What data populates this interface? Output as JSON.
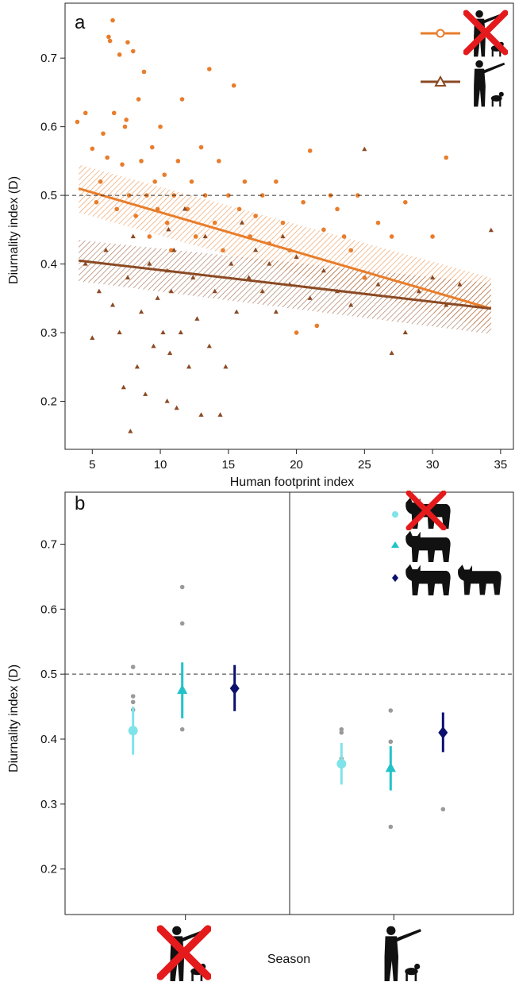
{
  "chart_data": [
    {
      "panel": "a",
      "type": "scatter",
      "xlabel": "Human footprint index",
      "ylabel": "Diurnality index (D)",
      "xlim": [
        3,
        36
      ],
      "ylim": [
        0.13,
        0.78
      ],
      "xticks": [
        "5",
        "10",
        "15",
        "20",
        "25",
        "30",
        "35"
      ],
      "yticks": [
        "0.2",
        "0.3",
        "0.4",
        "0.5",
        "0.6",
        "0.7"
      ],
      "reference_line": 0.5,
      "legend_position": "top-right",
      "colors": {
        "closed": "#E87D2B",
        "open": "#8B4A24"
      },
      "series": [
        {
          "legend_icon": "hunter-with-dog-crossed-icon",
          "marker": "circle",
          "color": "#E87D2B",
          "fit": {
            "x": [
              4,
              34.3
            ],
            "y": [
              0.51,
              0.335
            ]
          },
          "band_lower": [
            0.475,
            0.305
          ],
          "band_upper": [
            0.545,
            0.38
          ],
          "points": [
            [
              3.9,
              0.607
            ],
            [
              4.5,
              0.62
            ],
            [
              5.0,
              0.568
            ],
            [
              5.3,
              0.49
            ],
            [
              5.6,
              0.52
            ],
            [
              5.8,
              0.59
            ],
            [
              6.1,
              0.555
            ],
            [
              6.2,
              0.731
            ],
            [
              6.3,
              0.725
            ],
            [
              6.5,
              0.755
            ],
            [
              6.6,
              0.62
            ],
            [
              6.8,
              0.48
            ],
            [
              7.0,
              0.705
            ],
            [
              7.2,
              0.545
            ],
            [
              7.4,
              0.6
            ],
            [
              7.5,
              0.61
            ],
            [
              7.6,
              0.723
            ],
            [
              7.7,
              0.5
            ],
            [
              8.0,
              0.71
            ],
            [
              8.2,
              0.47
            ],
            [
              8.4,
              0.64
            ],
            [
              8.6,
              0.55
            ],
            [
              8.8,
              0.68
            ],
            [
              9.0,
              0.5
            ],
            [
              9.2,
              0.44
            ],
            [
              9.4,
              0.57
            ],
            [
              9.6,
              0.52
            ],
            [
              9.8,
              0.48
            ],
            [
              10.0,
              0.6
            ],
            [
              10.3,
              0.53
            ],
            [
              10.5,
              0.46
            ],
            [
              10.8,
              0.42
            ],
            [
              11.0,
              0.5
            ],
            [
              11.3,
              0.55
            ],
            [
              11.6,
              0.64
            ],
            [
              12.0,
              0.48
            ],
            [
              12.3,
              0.52
            ],
            [
              12.6,
              0.44
            ],
            [
              13.0,
              0.57
            ],
            [
              13.3,
              0.5
            ],
            [
              13.6,
              0.684
            ],
            [
              14.0,
              0.46
            ],
            [
              14.3,
              0.55
            ],
            [
              14.6,
              0.42
            ],
            [
              15.0,
              0.5
            ],
            [
              15.4,
              0.66
            ],
            [
              15.8,
              0.48
            ],
            [
              16.2,
              0.52
            ],
            [
              16.6,
              0.44
            ],
            [
              17.0,
              0.47
            ],
            [
              17.5,
              0.5
            ],
            [
              18.0,
              0.43
            ],
            [
              18.5,
              0.52
            ],
            [
              19.0,
              0.46
            ],
            [
              19.5,
              0.42
            ],
            [
              20.0,
              0.3
            ],
            [
              20.5,
              0.49
            ],
            [
              21.0,
              0.565
            ],
            [
              21.5,
              0.31
            ],
            [
              22.0,
              0.45
            ],
            [
              22.5,
              0.5
            ],
            [
              23.0,
              0.48
            ],
            [
              23.5,
              0.44
            ],
            [
              24.0,
              0.42
            ],
            [
              24.5,
              0.5
            ],
            [
              25.0,
              0.38
            ],
            [
              26.0,
              0.46
            ],
            [
              27.0,
              0.44
            ],
            [
              28.0,
              0.49
            ],
            [
              30.0,
              0.44
            ],
            [
              31.0,
              0.555
            ]
          ]
        },
        {
          "legend_icon": "hunter-with-dog-icon",
          "marker": "triangle",
          "color": "#8B4A24",
          "fit": {
            "x": [
              4,
              34.3
            ],
            "y": [
              0.405,
              0.335
            ]
          },
          "band_lower": [
            0.375,
            0.298
          ],
          "band_upper": [
            0.435,
            0.372
          ],
          "points": [
            [
              4.5,
              0.4
            ],
            [
              5.0,
              0.292
            ],
            [
              5.5,
              0.36
            ],
            [
              6.0,
              0.42
            ],
            [
              6.5,
              0.34
            ],
            [
              7.0,
              0.3
            ],
            [
              7.3,
              0.22
            ],
            [
              7.6,
              0.38
            ],
            [
              7.8,
              0.156
            ],
            [
              8.0,
              0.44
            ],
            [
              8.3,
              0.25
            ],
            [
              8.6,
              0.33
            ],
            [
              8.9,
              0.21
            ],
            [
              9.2,
              0.4
            ],
            [
              9.5,
              0.28
            ],
            [
              9.8,
              0.35
            ],
            [
              10.2,
              0.3
            ],
            [
              10.5,
              0.39
            ],
            [
              10.5,
              0.2
            ],
            [
              10.6,
              0.45
            ],
            [
              10.7,
              0.27
            ],
            [
              10.8,
              0.36
            ],
            [
              11.0,
              0.42
            ],
            [
              11.2,
              0.19
            ],
            [
              11.5,
              0.3
            ],
            [
              11.8,
              0.48
            ],
            [
              12.1,
              0.25
            ],
            [
              12.4,
              0.38
            ],
            [
              12.7,
              0.32
            ],
            [
              13.0,
              0.18
            ],
            [
              13.3,
              0.44
            ],
            [
              13.6,
              0.28
            ],
            [
              14.0,
              0.36
            ],
            [
              14.4,
              0.18
            ],
            [
              14.8,
              0.25
            ],
            [
              15.2,
              0.4
            ],
            [
              15.6,
              0.33
            ],
            [
              16.0,
              0.46
            ],
            [
              16.5,
              0.38
            ],
            [
              17.0,
              0.42
            ],
            [
              17.5,
              0.36
            ],
            [
              18.0,
              0.4
            ],
            [
              18.5,
              0.33
            ],
            [
              19.0,
              0.44
            ],
            [
              19.5,
              0.37
            ],
            [
              20.0,
              0.41
            ],
            [
              21.0,
              0.35
            ],
            [
              22.0,
              0.39
            ],
            [
              23.0,
              0.36
            ],
            [
              24.0,
              0.34
            ],
            [
              25.0,
              0.567
            ],
            [
              26.0,
              0.37
            ],
            [
              27.0,
              0.27
            ],
            [
              28.0,
              0.3
            ],
            [
              29.0,
              0.36
            ],
            [
              30.0,
              0.38
            ],
            [
              31.0,
              0.34
            ],
            [
              32.0,
              0.37
            ],
            [
              34.3,
              0.449
            ]
          ]
        }
      ]
    },
    {
      "panel": "b",
      "type": "scatter",
      "xlabel": "Season",
      "ylabel": "Diurnality index (D)",
      "ylim": [
        0.13,
        0.78
      ],
      "yticks": [
        "0.2",
        "0.3",
        "0.4",
        "0.5",
        "0.6",
        "0.7"
      ],
      "reference_line": 0.5,
      "legend_position": "top-right",
      "categories": [
        {
          "icon": "hunter-with-dog-crossed-icon"
        },
        {
          "icon": "hunter-with-dog-icon"
        }
      ],
      "colors": {
        "a": "#7FE3E9",
        "b": "#22C3C8",
        "c": "#0B0F6E",
        "raw": "#9a9a9a"
      },
      "series": [
        {
          "legend_icon": "lynx-crossed-icon",
          "marker": "circle",
          "color": "#7FE3E9",
          "mean": [
            0.413,
            0.362
          ],
          "lower": [
            0.376,
            0.33
          ],
          "upper": [
            0.45,
            0.394
          ],
          "raw": [
            [
              0.511,
              0.466,
              0.457,
              0.445
            ],
            [
              0.415,
              0.41,
              0.37
            ]
          ]
        },
        {
          "legend_icon": "lynx-icon",
          "marker": "triangle",
          "color": "#22C3C8",
          "mean": [
            0.475,
            0.355
          ],
          "lower": [
            0.432,
            0.321
          ],
          "upper": [
            0.518,
            0.389
          ],
          "raw": [
            [
              0.634,
              0.578,
              0.415
            ],
            [
              0.444,
              0.396,
              0.265
            ]
          ]
        },
        {
          "legend_icon": "two-lynx-icon",
          "marker": "diamond",
          "color": "#0B0F6E",
          "mean": [
            0.478,
            0.41
          ],
          "lower": [
            0.443,
            0.38
          ],
          "upper": [
            0.514,
            0.441
          ],
          "raw": [
            [],
            [
              0.292
            ]
          ]
        }
      ]
    }
  ],
  "labels": {
    "panel_a": "a",
    "panel_b": "b"
  }
}
